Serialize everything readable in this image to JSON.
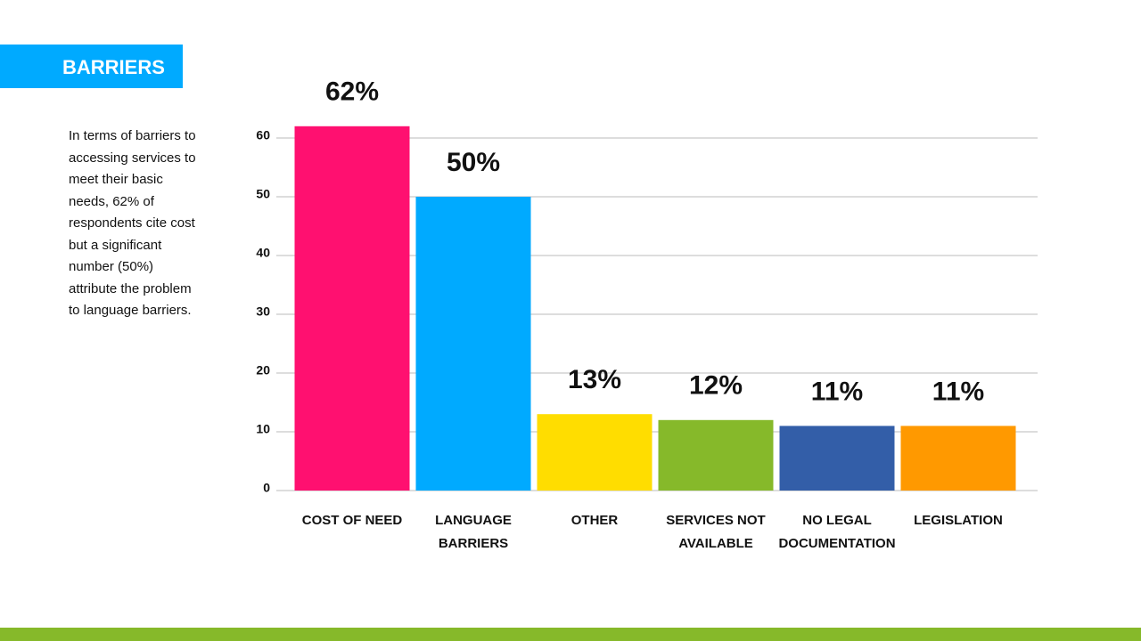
{
  "header": {
    "title": "BARRIERS"
  },
  "description": "In terms of barriers to accessing services to meet their basic needs, 62% of respondents cite cost but a significant number (50%) attribute the problem to language barriers.",
  "chart_data": {
    "type": "bar",
    "categories": [
      "COST OF NEED",
      "LANGUAGE BARRIERS",
      "OTHER",
      "SERVICES NOT AVAILABLE",
      "NO LEGAL DOCUMENTATION",
      "LEGISLATION"
    ],
    "values": [
      62,
      50,
      13,
      12,
      11,
      11
    ],
    "value_labels": [
      "62%",
      "50%",
      "13%",
      "12%",
      "11%",
      "11%"
    ],
    "colors": [
      "#ff1070",
      "#00aaff",
      "#ffdd00",
      "#86b92a",
      "#335ea8",
      "#ff9900"
    ],
    "ylim": [
      0,
      60
    ],
    "yticks": [
      0,
      10,
      20,
      30,
      40,
      50,
      60
    ],
    "grid": true
  }
}
